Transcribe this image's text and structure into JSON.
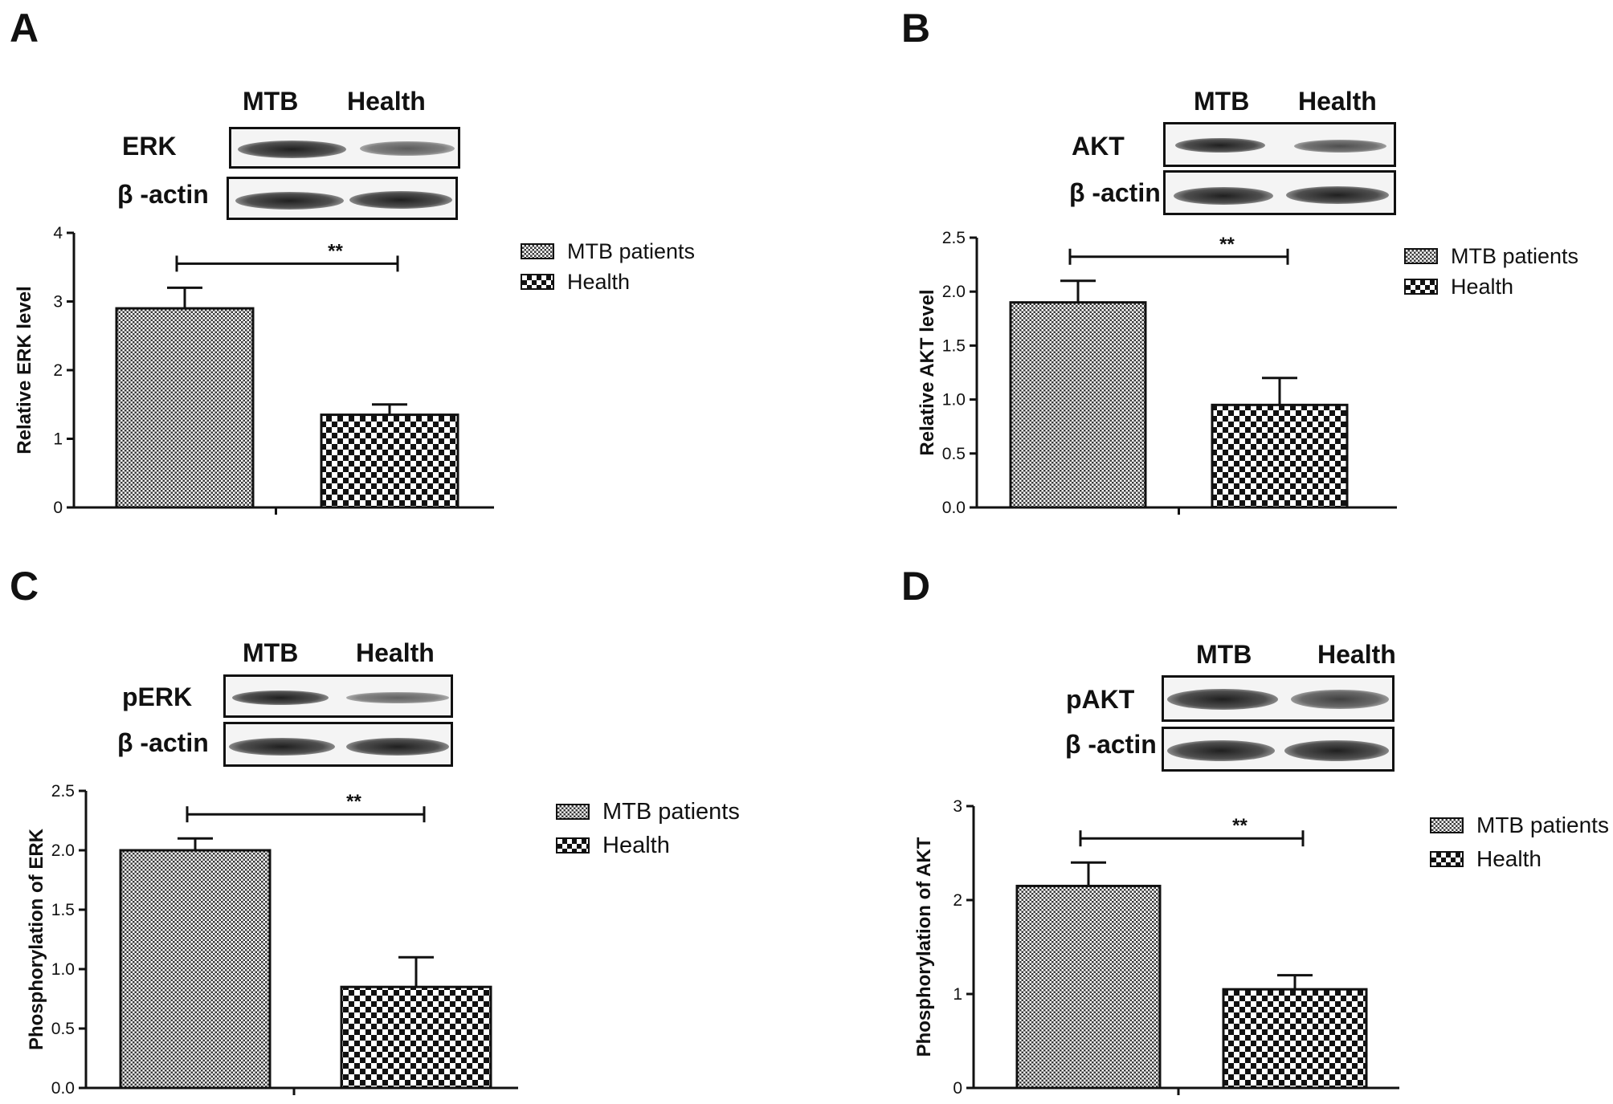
{
  "colors": {
    "ink": "#111111",
    "band": "#2a2a2a",
    "blot_bg": "#f4f4f4"
  },
  "legend_labels": [
    "MTB patients",
    "Health"
  ],
  "lane_labels": [
    "MTB",
    "Health"
  ],
  "chart_data": [
    {
      "panel": "A",
      "type": "bar",
      "blot_rows": [
        "ERK",
        "β -actin"
      ],
      "band_intensity": [
        [
          1.0,
          0.55
        ],
        [
          1.0,
          1.0
        ]
      ],
      "categories": [
        "MTB patients",
        "Health"
      ],
      "values": [
        2.9,
        1.35
      ],
      "errors": [
        0.3,
        0.15
      ],
      "ylabel": "Relative ERK level",
      "ylim": [
        0,
        4
      ],
      "yticks": [
        "0",
        "1",
        "2",
        "3",
        "4"
      ],
      "ytick_values": [
        0,
        1,
        2,
        3,
        4
      ],
      "significance": "**"
    },
    {
      "panel": "B",
      "type": "bar",
      "blot_rows": [
        "AKT",
        "β -actin"
      ],
      "band_intensity": [
        [
          1.0,
          0.65
        ],
        [
          1.0,
          1.0
        ]
      ],
      "categories": [
        "MTB patients",
        "Health"
      ],
      "values": [
        1.9,
        0.95
      ],
      "errors": [
        0.2,
        0.25
      ],
      "ylabel": "Relative AKT level",
      "ylim": [
        0,
        2.5
      ],
      "yticks": [
        "0.0",
        "0.5",
        "1.0",
        "1.5",
        "2.0",
        "2.5"
      ],
      "ytick_values": [
        0,
        0.5,
        1.0,
        1.5,
        2.0,
        2.5
      ],
      "significance": "**"
    },
    {
      "panel": "C",
      "type": "bar",
      "blot_rows": [
        "pERK",
        "β -actin"
      ],
      "band_intensity": [
        [
          1.0,
          0.5
        ],
        [
          1.0,
          1.0
        ]
      ],
      "categories": [
        "MTB patients",
        "Health"
      ],
      "values": [
        2.0,
        0.85
      ],
      "errors": [
        0.1,
        0.25
      ],
      "ylabel": "Phosphorylation of ERK",
      "ylim": [
        0,
        2.5
      ],
      "yticks": [
        "0.0",
        "0.5",
        "1.0",
        "1.5",
        "2.0",
        "2.5"
      ],
      "ytick_values": [
        0,
        0.5,
        1.0,
        1.5,
        2.0,
        2.5
      ],
      "significance": "**"
    },
    {
      "panel": "D",
      "type": "bar",
      "blot_rows": [
        "pAKT",
        "β -actin"
      ],
      "band_intensity": [
        [
          1.0,
          0.75
        ],
        [
          1.0,
          1.0
        ]
      ],
      "categories": [
        "MTB patients",
        "Health"
      ],
      "values": [
        2.15,
        1.05
      ],
      "errors": [
        0.25,
        0.15
      ],
      "ylabel": "Phosphorylation of AKT",
      "ylim": [
        0,
        3
      ],
      "yticks": [
        "0",
        "1",
        "2",
        "3"
      ],
      "ytick_values": [
        0,
        1,
        2,
        3
      ],
      "significance": "**"
    }
  ]
}
